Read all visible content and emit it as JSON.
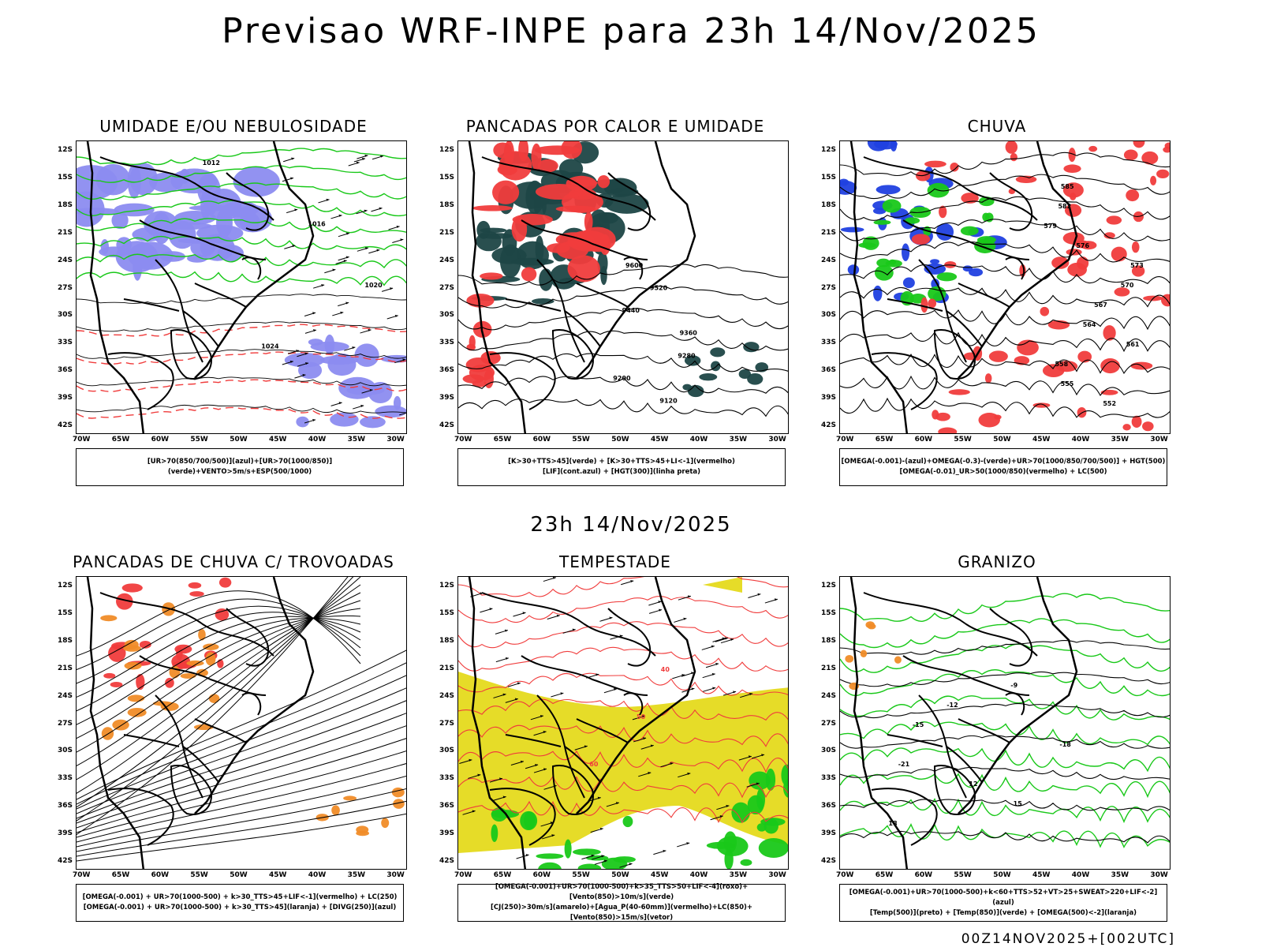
{
  "page_title": "Previsao WRF-INPE  para 23h 14/Nov/2025",
  "mid_label": "23h 14/Nov/2025",
  "footer": "00Z14NOV2025+[002UTC]",
  "axes": {
    "lat_labels": [
      "12S",
      "15S",
      "18S",
      "21S",
      "24S",
      "27S",
      "30S",
      "33S",
      "36S",
      "39S",
      "42S"
    ],
    "lon_labels": [
      "70W",
      "65W",
      "60W",
      "55W",
      "50W",
      "45W",
      "40W",
      "35W",
      "30W"
    ]
  },
  "colors": {
    "blue_humidity": "#8c8cf0",
    "green": "#19c819",
    "red": "#f03c3c",
    "dark_teal": "#1e4646",
    "orange": "#f08c28",
    "yellow": "#e6dc28"
  },
  "panels": [
    {
      "title": "UMIDADE E/OU NEBULOSIDADE",
      "legend": [
        "[UR>70(850/700/500)](azul)+[UR>70(1000/850)](verde)+VENTO>5m/s+ESP(500/1000)"
      ],
      "contour_labels": [
        "1012",
        "1016",
        "1020",
        "1024"
      ]
    },
    {
      "title": "PANCADAS POR CALOR E UMIDADE",
      "legend": [
        "[K>30+TTS>45](verde) + [K>30+TTS>45+LI<-1](vermelho)",
        "[LIF](cont.azul) + [HGT(300)](linha preta)"
      ],
      "contour_labels": [
        "9600",
        "9520",
        "9440",
        "9360",
        "9280",
        "9200",
        "9120"
      ]
    },
    {
      "title": "CHUVA",
      "legend": [
        "[OMEGA(-0.001)-(azul)+OMEGA(-0.3)-(verde)+UR>70(1000/850/700/500)] + HGT(500)",
        "[OMEGA(-0.01)_UR>50(1000/850)(vermelho) + LC(500)"
      ],
      "contour_labels": [
        "585",
        "582",
        "579",
        "576",
        "573",
        "570",
        "567",
        "564",
        "561",
        "558",
        "555",
        "552"
      ]
    },
    {
      "title": "PANCADAS DE CHUVA C/ TROVOADAS",
      "legend": [
        "[OMEGA(-0.001) + UR>70(1000-500) + k>30_TTS>45+LIF<-1](vermelho) + LC(250)",
        "[OMEGA(-0.001) + UR>70(1000-500) + k>30_TTS>45](laranja) + [DIVG(250)](azul)"
      ],
      "contour_labels": []
    },
    {
      "title": "TEMPESTADE",
      "legend": [
        "[OMEGA(-0.001)+UR>70(1000-500)+k>35_TTS>50+LIF<-4](roxo)+[Vento(850)>10m/s](verde)",
        "[CJ(250)>30m/s](amarelo)+[Agua_P(40-60mm)](vermelho)+LC(850)+[Vento(850)>15m/s](vetor)"
      ],
      "contour_labels": [
        "40",
        "50",
        "60"
      ]
    },
    {
      "title": "GRANIZO",
      "legend": [
        "[OMEGA(-0.001)+UR>70(1000-500)+k<60+TTS>52+VT>25+SWEAT>220+LIF<-2](azul)",
        "[Temp(500)](preto) + [Temp(850)](verde) + [OMEGA(500)<-2](laranja)"
      ],
      "contour_labels": [
        "-9",
        "-12",
        "-15",
        "-18",
        "-21",
        "12",
        "15",
        "18"
      ]
    }
  ]
}
